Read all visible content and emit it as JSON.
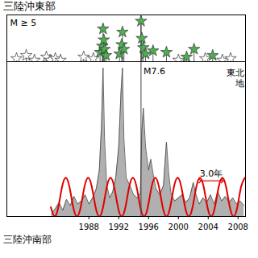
{
  "chart_data": {
    "type": "area",
    "title": "三陸沖東部",
    "caption": "三陸沖南部",
    "xlim": [
      1977,
      2009
    ],
    "xticks": [
      1988,
      1992,
      1996,
      2000,
      2004,
      2008
    ],
    "ylim": [
      0,
      100
    ],
    "tick_labels": "x",
    "grid": false,
    "series": [
      {
        "type": "area",
        "color": "#b0b0b0",
        "x": [
          1983.0,
          1983.5,
          1984.0,
          1984.5,
          1985.0,
          1985.5,
          1986.0,
          1986.5,
          1987.0,
          1987.5,
          1988.0,
          1988.5,
          1989.0,
          1989.4,
          1989.7,
          1989.9,
          1990.1,
          1990.4,
          1990.8,
          1991.2,
          1991.6,
          1992.0,
          1992.3,
          1992.5,
          1992.7,
          1993.0,
          1993.5,
          1994.0,
          1994.5,
          1994.9,
          1995.1,
          1995.3,
          1995.6,
          1996.0,
          1996.3,
          1996.7,
          1997.0,
          1997.5,
          1998.0,
          1998.4,
          1998.7,
          1999.0,
          1999.5,
          2000.0,
          2000.5,
          2001.0,
          2001.5,
          2002.0,
          2002.3,
          2002.8,
          2003.3,
          2003.8,
          2004.3,
          2004.8,
          2005.3,
          2005.8,
          2006.3,
          2006.8,
          2007.3,
          2007.8,
          2008.3,
          2008.8
        ],
        "values": [
          2,
          5,
          9,
          4,
          11,
          7,
          13,
          8,
          10,
          14,
          8,
          12,
          18,
          30,
          60,
          96,
          50,
          20,
          12,
          16,
          25,
          45,
          80,
          96,
          50,
          25,
          20,
          14,
          12,
          15,
          55,
          70,
          45,
          30,
          37,
          25,
          18,
          14,
          20,
          48,
          28,
          15,
          10,
          12,
          14,
          9,
          12,
          22,
          15,
          8,
          12,
          9,
          14,
          8,
          16,
          10,
          13,
          9,
          12,
          8,
          10,
          7
        ]
      },
      {
        "type": "line",
        "color": "#e00000",
        "x": [
          1982.9,
          1983.4,
          1983.9,
          1984.4,
          1984.9,
          1985.4,
          1985.9,
          1986.4,
          1986.9,
          1987.4,
          1987.9,
          1988.4,
          1988.9,
          1989.4,
          1989.9,
          1990.4,
          1990.9,
          1991.4,
          1991.9,
          1992.4,
          1992.9,
          1993.4,
          1993.9,
          1994.4,
          1994.9,
          1995.4,
          1995.9,
          1996.4,
          1996.9,
          1997.4,
          1997.9,
          1998.4,
          1998.9,
          1999.4,
          1999.9,
          2000.4,
          2000.9,
          2001.4,
          2001.9,
          2002.4,
          2002.9,
          2003.4,
          2003.9,
          2004.4,
          2004.9,
          2005.4,
          2005.9,
          2006.4,
          2006.9,
          2007.4,
          2007.9,
          2008.4,
          2008.9
        ],
        "values": [
          6,
          0,
          6,
          19,
          25,
          19,
          6,
          0,
          6,
          19,
          25,
          19,
          6,
          0,
          6,
          19,
          25,
          19,
          6,
          0,
          6,
          19,
          25,
          19,
          6,
          0,
          6,
          19,
          25,
          19,
          6,
          0,
          6,
          19,
          25,
          19,
          6,
          0,
          6,
          19,
          25,
          19,
          6,
          0,
          6,
          19,
          25,
          19,
          6,
          0,
          6,
          19,
          25
        ]
      }
    ],
    "events": {
      "label": "M ≥ 5",
      "marker": "star",
      "mlim": [
        5,
        8
      ],
      "x": [
        1978.3,
        1979.6,
        1980.7,
        1982.3,
        1982.8,
        1983.5,
        1984.2,
        1987.3,
        1988.6,
        1989.5,
        1989.8,
        1989.9,
        1990.0,
        1990.1,
        1990.3,
        1992.1,
        1992.4,
        1992.5,
        1992.7,
        1994.99,
        1995.1,
        1995.3,
        1995.6,
        1996.6,
        1998.4,
        2000.0,
        2001.1,
        2002.1,
        2003.6,
        2004.6,
        2005.9,
        2007.0
      ],
      "magnitude": [
        5.2,
        5.4,
        5.1,
        5.3,
        5.1,
        5.2,
        5.1,
        5.3,
        5.2,
        5.6,
        6.0,
        7.1,
        6.4,
        5.8,
        5.4,
        5.5,
        6.1,
        6.9,
        5.8,
        7.6,
        6.5,
        5.9,
        5.5,
        5.7,
        5.6,
        5.1,
        5.3,
        5.8,
        5.2,
        5.4,
        5.1,
        5.2
      ],
      "colors": [
        "#ffffff",
        "#ffffff",
        "#ffffff",
        "#ffffff",
        "#ffffff",
        "#ffffff",
        "#ffffff",
        "#ffffff",
        "#ffffff",
        "#4caf50",
        "#4caf50",
        "#4caf50",
        "#4caf50",
        "#4caf50",
        "#4caf50",
        "#4caf50",
        "#4caf50",
        "#4caf50",
        "#4caf50",
        "#4caf50",
        "#4caf50",
        "#4caf50",
        "#4caf50",
        "#4caf50",
        "#4caf50",
        "#ffffff",
        "#4caf50",
        "#4caf50",
        "#ffffff",
        "#4caf50",
        "#ffffff",
        "#ffffff"
      ]
    },
    "annotations": [
      {
        "text": "M7.6",
        "x": 1994.99
      },
      {
        "text": "3.0年",
        "x1": 2002.9,
        "x2": 2005.9,
        "y": 23,
        "color": "#e00000"
      },
      {
        "text": "東北\n地"
      }
    ]
  }
}
